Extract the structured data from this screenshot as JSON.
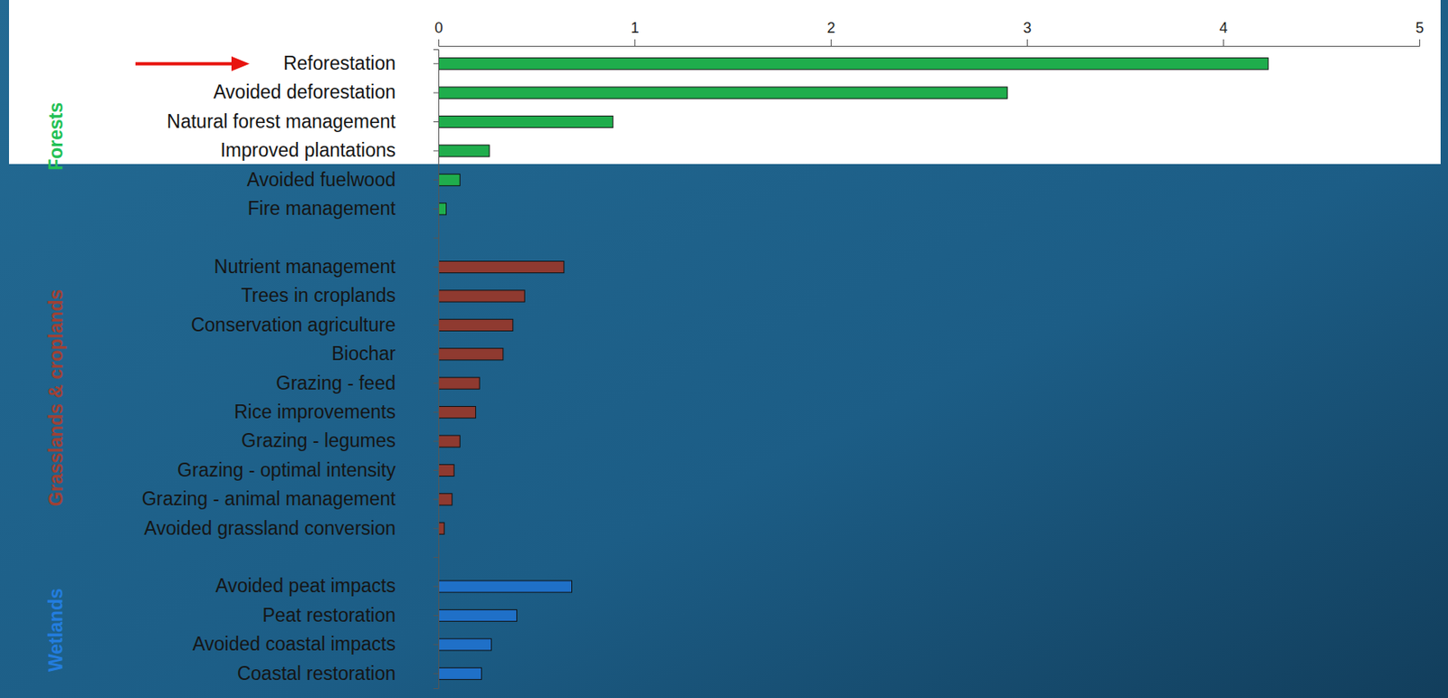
{
  "chart_data": {
    "type": "bar",
    "orientation": "horizontal",
    "categories": [
      "Reforestation",
      "Avoided deforestation",
      "Natural forest management",
      "Improved plantations",
      "Avoided fuelwood",
      "Fire management",
      null,
      "Nutrient management",
      "Trees in croplands",
      "Conservation agriculture",
      "Biochar",
      "Grazing - feed",
      "Rice improvements",
      "Grazing - legumes",
      "Grazing - optimal intensity",
      "Grazing - animal management",
      "Avoided grassland conversion",
      null,
      "Avoided peat impacts",
      "Peat restoration",
      "Avoided coastal impacts",
      "Coastal restoration"
    ],
    "series": [
      {
        "name": "Forests",
        "color": "#1fad4c",
        "values": [
          4.23,
          2.9,
          0.89,
          0.26,
          0.11,
          0.04,
          null,
          null,
          null,
          null,
          null,
          null,
          null,
          null,
          null,
          null,
          null,
          null,
          null,
          null,
          null,
          null
        ]
      },
      {
        "name": "Grasslands & croplands",
        "color": "#8f3a30",
        "values": [
          null,
          null,
          null,
          null,
          null,
          null,
          null,
          0.64,
          0.44,
          0.38,
          0.33,
          0.21,
          0.19,
          0.11,
          0.08,
          0.07,
          0.03,
          null,
          null,
          null,
          null,
          null
        ]
      },
      {
        "name": "Wetlands",
        "color": "#1f70c8",
        "values": [
          null,
          null,
          null,
          null,
          null,
          null,
          null,
          null,
          null,
          null,
          null,
          null,
          null,
          null,
          null,
          null,
          null,
          null,
          0.68,
          0.4,
          0.27,
          0.22
        ]
      }
    ],
    "xlim": [
      0,
      5
    ],
    "xticks": [
      0,
      1,
      2,
      3,
      4,
      5
    ]
  }
}
